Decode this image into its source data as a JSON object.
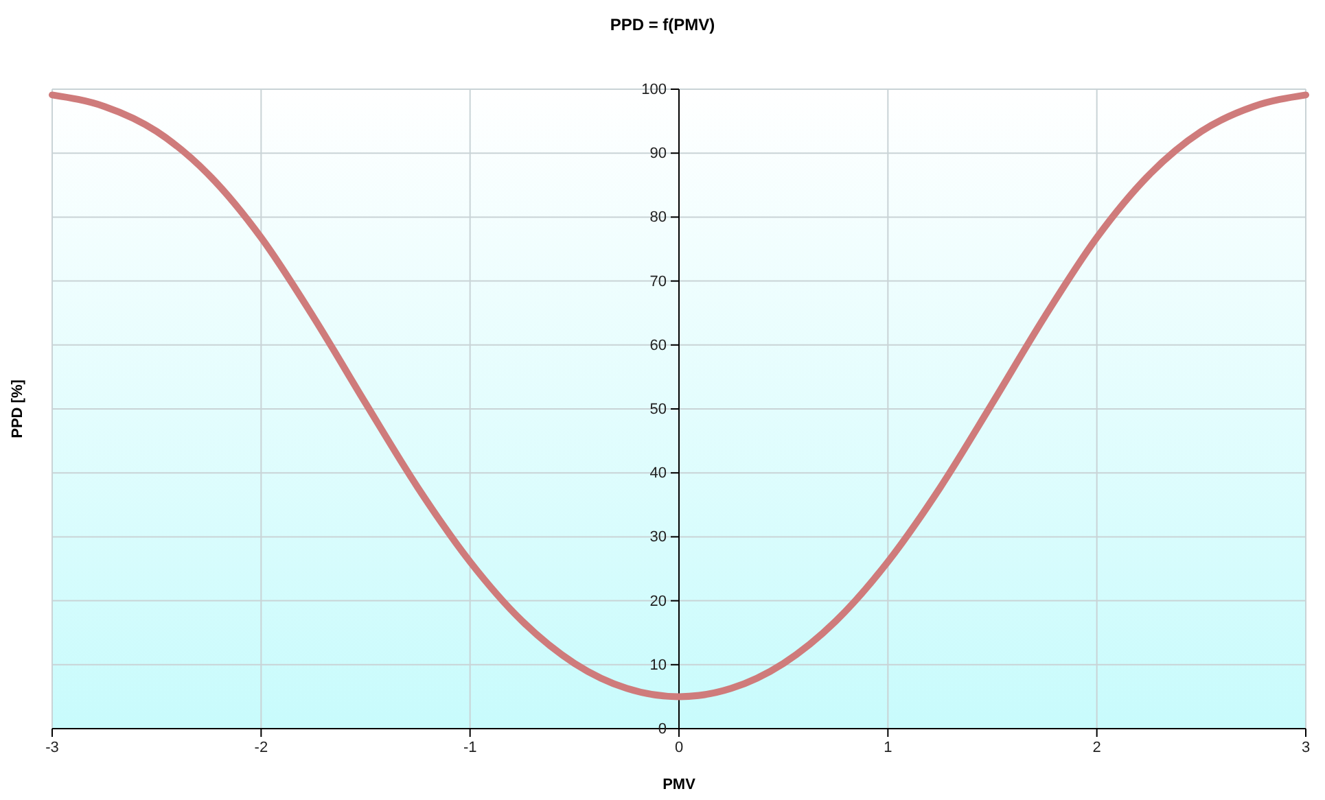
{
  "chart_data": {
    "type": "line",
    "title": "PPD = f(PMV)",
    "xlabel": "PMV",
    "ylabel": "PPD [%]",
    "x": [
      -3,
      -2.75,
      -2.5,
      -2.25,
      -2,
      -1.75,
      -1.5,
      -1.25,
      -1,
      -0.75,
      -0.5,
      -0.25,
      0,
      0.25,
      0.5,
      0.75,
      1,
      1.25,
      1.5,
      1.75,
      2,
      2.25,
      2.5,
      2.75,
      3
    ],
    "series": [
      {
        "color": "#cf7b7b",
        "values": [
          99.1,
          97.3,
          93.4,
          86.6,
          76.8,
          64.4,
          50.9,
          37.7,
          26.1,
          16.8,
          10.2,
          6.3,
          5,
          6.3,
          10.2,
          16.8,
          26.1,
          37.7,
          50.9,
          64.4,
          76.8,
          86.6,
          93.4,
          97.3,
          99.1
        ]
      }
    ],
    "xlim": [
      -3,
      3
    ],
    "xticks": [
      -3,
      -2,
      -1,
      0,
      1,
      2,
      3
    ],
    "ylim": [
      0,
      100
    ],
    "yticks": [
      0,
      10,
      20,
      30,
      40,
      50,
      60,
      70,
      80,
      90,
      100
    ],
    "grid": true,
    "marker": "none",
    "line_style": "solid"
  }
}
